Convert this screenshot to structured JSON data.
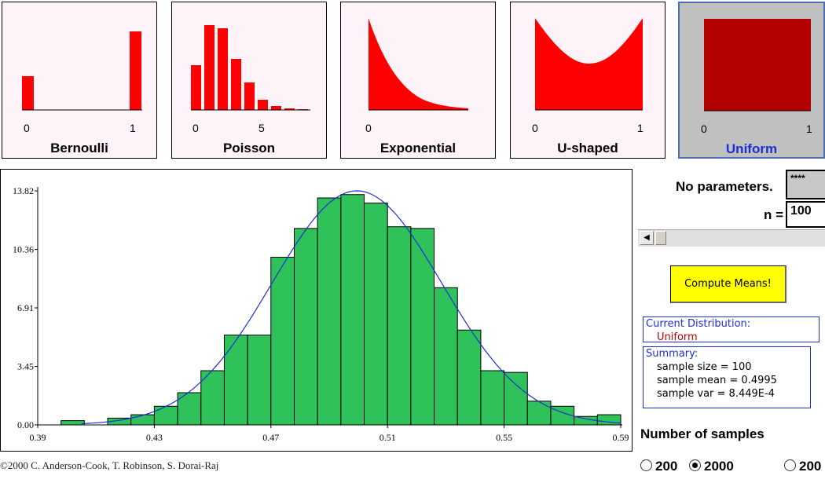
{
  "distributions": [
    {
      "name": "Bernoulli",
      "ticks": [
        "0",
        "1"
      ],
      "selected": false
    },
    {
      "name": "Poisson",
      "ticks": [
        "0",
        "5"
      ],
      "selected": false
    },
    {
      "name": "Exponential",
      "ticks": [
        "0"
      ],
      "selected": false
    },
    {
      "name": "U-shaped",
      "ticks": [
        "0",
        "1"
      ],
      "selected": false
    },
    {
      "name": "Uniform",
      "ticks": [
        "0",
        "1"
      ],
      "selected": true
    }
  ],
  "colors": {
    "dist_fill": "#ff0000",
    "uniform_fill": "#b30000",
    "bar_fill": "#2fc25b",
    "curve": "#1b2fd6",
    "button": "#ffff00"
  },
  "params": {
    "label": "No parameters.",
    "field_value": "****",
    "n_label": "n =",
    "n_value": "100"
  },
  "compute_button": "Compute Means!",
  "current_distribution": {
    "heading": "Current Distribution:",
    "value": "Uniform"
  },
  "summary": {
    "heading": "Summary:",
    "lines": [
      "sample size = 100",
      "sample mean = 0.4995",
      "sample var = 8.449E-4"
    ]
  },
  "samples": {
    "label": "Number of samples",
    "options": [
      "200",
      "2000",
      "200"
    ],
    "selected": "2000"
  },
  "copyright": "©2000 C. Anderson-Cook, T. Robinson, S. Dorai-Raj",
  "chart_data": {
    "type": "bar",
    "title": "",
    "xlabel": "",
    "ylabel": "",
    "xlim": [
      0.39,
      0.59
    ],
    "ylim": [
      0,
      13.82
    ],
    "x_ticks": [
      "0.39",
      "0.43",
      "0.47",
      "0.51",
      "0.55",
      "0.59"
    ],
    "y_ticks": [
      "0.00",
      "3.45",
      "6.91",
      "10.36",
      "13.82"
    ],
    "bin_width": 0.008,
    "bin_starts": [
      0.398,
      0.406,
      0.414,
      0.422,
      0.43,
      0.438,
      0.446,
      0.454,
      0.462,
      0.47,
      0.478,
      0.486,
      0.494,
      0.502,
      0.51,
      0.518,
      0.526,
      0.534,
      0.542,
      0.55,
      0.558,
      0.566,
      0.574,
      0.582
    ],
    "values": [
      0.25,
      0.0,
      0.4,
      0.6,
      1.1,
      1.9,
      3.2,
      5.3,
      5.3,
      9.9,
      11.6,
      13.4,
      13.6,
      13.1,
      11.7,
      11.6,
      8.1,
      5.6,
      3.2,
      3.1,
      1.4,
      1.1,
      0.5,
      0.6
    ],
    "curve": {
      "type": "normal",
      "mean": 0.4995,
      "sd": 0.02907
    }
  }
}
